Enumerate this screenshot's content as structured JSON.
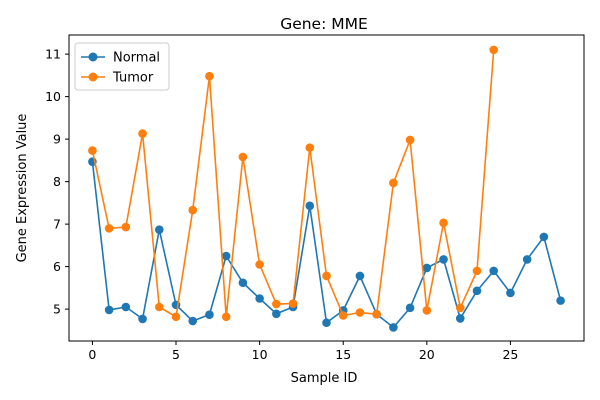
{
  "chart_data": {
    "type": "line",
    "title": "Gene: MME",
    "xlabel": "Sample ID",
    "ylabel": "Gene Expression Value",
    "xlim": [
      -1.4,
      29.4
    ],
    "ylim": [
      4.25,
      11.45
    ],
    "xticks": [
      0,
      5,
      10,
      15,
      20,
      25
    ],
    "yticks": [
      5,
      6,
      7,
      8,
      9,
      10,
      11
    ],
    "grid": false,
    "legend_position": "top-left",
    "series": [
      {
        "name": "Normal",
        "color": "#1f77b4",
        "x": [
          0,
          1,
          2,
          3,
          4,
          5,
          6,
          7,
          8,
          9,
          10,
          11,
          12,
          13,
          14,
          15,
          16,
          17,
          18,
          19,
          20,
          21,
          22,
          23,
          24,
          25,
          26,
          27,
          28
        ],
        "values": [
          8.47,
          4.98,
          5.05,
          4.77,
          6.87,
          5.1,
          4.72,
          4.87,
          6.25,
          5.62,
          5.25,
          4.89,
          5.05,
          7.43,
          4.68,
          4.97,
          5.78,
          4.88,
          4.57,
          5.03,
          5.97,
          6.17,
          4.78,
          5.43,
          5.9,
          5.38,
          6.17,
          6.7,
          5.2
        ]
      },
      {
        "name": "Tumor",
        "color": "#ff7f0e",
        "x": [
          0,
          1,
          2,
          3,
          4,
          5,
          6,
          7,
          8,
          9,
          10,
          11,
          12,
          13,
          14,
          15,
          16,
          17,
          18,
          19,
          20,
          21,
          22,
          23,
          24
        ],
        "values": [
          8.73,
          6.9,
          6.93,
          9.13,
          5.05,
          4.82,
          7.33,
          10.48,
          4.82,
          8.58,
          6.05,
          5.12,
          5.13,
          8.8,
          5.78,
          4.85,
          4.92,
          4.88,
          7.97,
          8.98,
          4.97,
          7.03,
          5.03,
          5.9,
          11.1
        ]
      }
    ]
  }
}
